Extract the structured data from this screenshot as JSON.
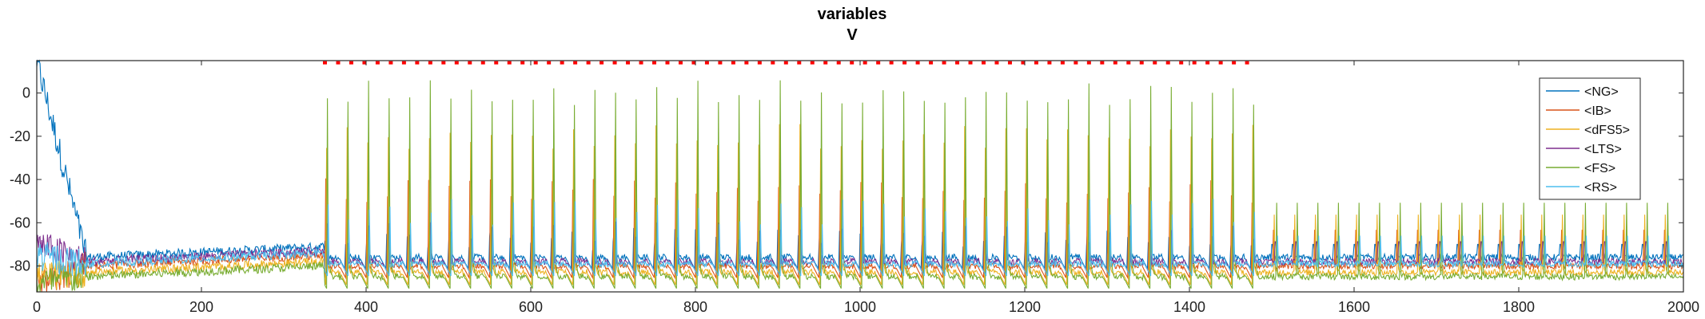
{
  "chart_data": {
    "type": "line",
    "title": "variables",
    "subtitle": "V",
    "xlabel": "",
    "ylabel": "",
    "xlim": [
      0,
      2000
    ],
    "ylim": [
      -92,
      15
    ],
    "x_ticks": [
      0,
      200,
      400,
      600,
      800,
      1000,
      1200,
      1400,
      1600,
      1800,
      2000
    ],
    "y_ticks": [
      0,
      -20,
      -40,
      -60,
      -80
    ],
    "grid": false,
    "legend_position": "top-right",
    "stimulus_marker": {
      "color": "#ff0000",
      "x_start": 350,
      "x_end": 1480,
      "y": 14
    },
    "series": [
      {
        "name": "<NG>",
        "color": "#0072BD",
        "baseline": -76,
        "spike_peak": -68,
        "start_value": 15
      },
      {
        "name": "<IB>",
        "color": "#D95319",
        "baseline": -80,
        "spike_peak": -45,
        "start_value": -90
      },
      {
        "name": "<dFS5>",
        "color": "#EDB120",
        "baseline": -83,
        "spike_peak": -20,
        "start_value": -85
      },
      {
        "name": "<LTS>",
        "color": "#7E2F8E",
        "baseline": -78,
        "spike_peak": -65,
        "start_value": -70
      },
      {
        "name": "<FS>",
        "color": "#77AC30",
        "baseline": -85,
        "spike_peak": 0,
        "start_value": -88
      },
      {
        "name": "<RS>",
        "color": "#4DBEEE",
        "baseline": -79,
        "spike_peak": -55,
        "start_value": -75
      }
    ]
  }
}
